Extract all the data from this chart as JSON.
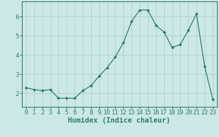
{
  "x": [
    0,
    1,
    2,
    3,
    4,
    5,
    6,
    7,
    8,
    9,
    10,
    11,
    12,
    13,
    14,
    15,
    16,
    17,
    18,
    19,
    20,
    21,
    22,
    23
  ],
  "y": [
    2.3,
    2.2,
    2.15,
    2.2,
    1.75,
    1.75,
    1.75,
    2.15,
    2.4,
    2.9,
    3.35,
    3.9,
    4.65,
    5.75,
    6.35,
    6.35,
    5.55,
    5.2,
    4.4,
    4.55,
    5.3,
    6.15,
    3.4,
    1.7
  ],
  "line_color": "#2d7d6e",
  "marker": "D",
  "marker_size": 2.0,
  "bg_color": "#cce8e4",
  "grid_color": "#aacfcc",
  "axis_color": "#2d7d6e",
  "xlabel": "Humidex (Indice chaleur)",
  "ylim": [
    1.3,
    6.8
  ],
  "xlim": [
    -0.5,
    23.5
  ],
  "yticks": [
    2,
    3,
    4,
    5,
    6
  ],
  "xticks": [
    0,
    1,
    2,
    3,
    4,
    5,
    6,
    7,
    8,
    9,
    10,
    11,
    12,
    13,
    14,
    15,
    16,
    17,
    18,
    19,
    20,
    21,
    22,
    23
  ],
  "xlabel_fontsize": 7.5,
  "tick_fontsize": 6.5,
  "linewidth": 0.9
}
